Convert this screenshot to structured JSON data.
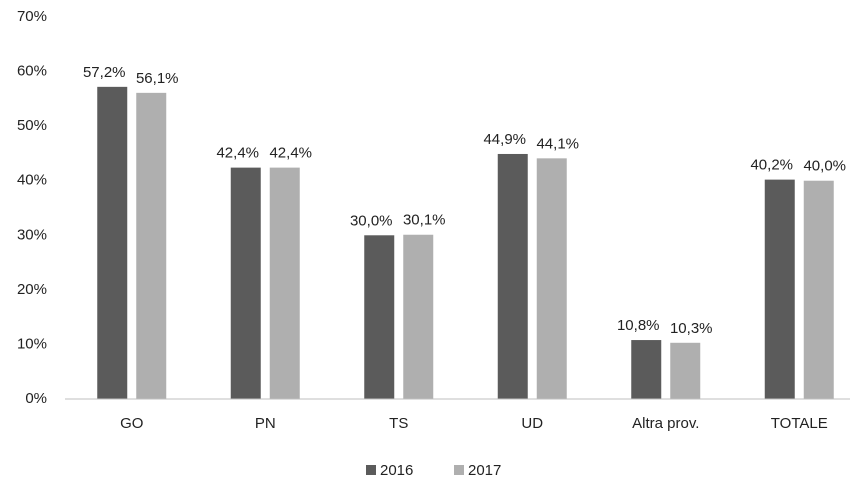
{
  "chart_data": {
    "type": "bar",
    "categories": [
      "GO",
      "PN",
      "TS",
      "UD",
      "Altra prov.",
      "TOTALE"
    ],
    "series": [
      {
        "name": "2016",
        "color": "#5b5b5b",
        "values": [
          57.2,
          42.4,
          30.0,
          44.9,
          10.8,
          40.2
        ],
        "value_labels": [
          "57,2%",
          "42,4%",
          "30,0%",
          "44,9%",
          "10,8%",
          "40,2%"
        ]
      },
      {
        "name": "2017",
        "color": "#afafaf",
        "values": [
          56.1,
          42.4,
          30.1,
          44.1,
          10.3,
          40.0
        ],
        "value_labels": [
          "56,1%",
          "42,4%",
          "30,1%",
          "44,1%",
          "10,3%",
          "40,0%"
        ]
      }
    ],
    "ylim": [
      0,
      70
    ],
    "yticks": [
      {
        "value": 0,
        "label": "0%"
      },
      {
        "value": 10,
        "label": "10%"
      },
      {
        "value": 20,
        "label": "20%"
      },
      {
        "value": 30,
        "label": "30%"
      },
      {
        "value": 40,
        "label": "40%"
      },
      {
        "value": 50,
        "label": "50%"
      },
      {
        "value": 60,
        "label": "60%"
      },
      {
        "value": 70,
        "label": "70%"
      }
    ],
    "grid": false,
    "legend": "bottom"
  }
}
